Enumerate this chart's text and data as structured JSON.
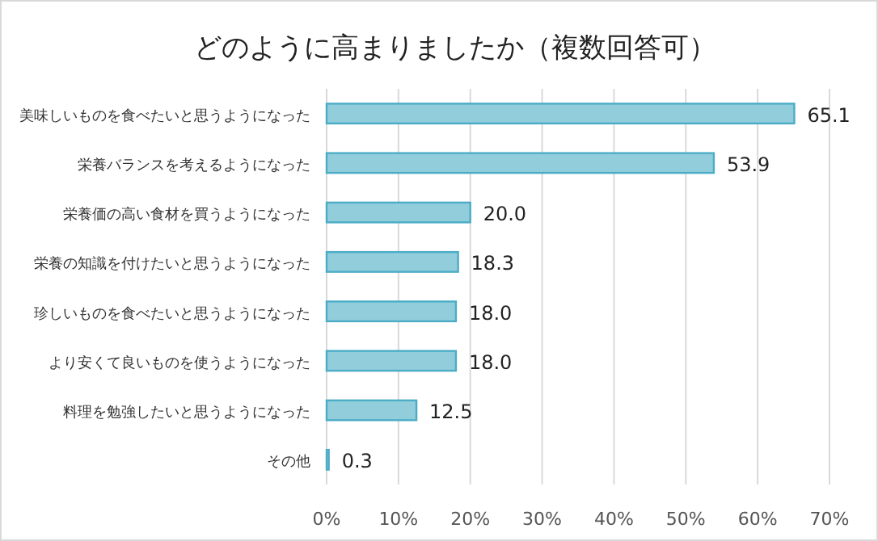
{
  "chart_data": {
    "type": "bar",
    "orientation": "horizontal",
    "title": "どのように高まりましたか（複数回答可）",
    "categories": [
      "美味しいものを食べたいと思うようになった",
      "栄養バランスを考えるようになった",
      "栄養価の高い食材を買うようになった",
      "栄養の知識を付けたいと思うようになった",
      "珍しいものを食べたいと思うようになった",
      "より安くて良いものを使うようになった",
      "料理を勉強したいと思うようになった",
      "その他"
    ],
    "values": [
      65.1,
      53.9,
      20.0,
      18.3,
      18.0,
      18.0,
      12.5,
      0.3
    ],
    "value_labels": [
      "65.1",
      "53.9",
      "20.0",
      "18.3",
      "18.0",
      "18.0",
      "12.5",
      "0.3"
    ],
    "color": "#92cddc",
    "xlim": [
      0,
      70
    ],
    "xticks": [
      {
        "value": 0,
        "label": "0%"
      },
      {
        "value": 10,
        "label": "10%"
      },
      {
        "value": 20,
        "label": "20%"
      },
      {
        "value": 30,
        "label": "30%"
      },
      {
        "value": 40,
        "label": "40%"
      },
      {
        "value": 50,
        "label": "50%"
      },
      {
        "value": 60,
        "label": "60%"
      },
      {
        "value": 70,
        "label": "70%"
      }
    ],
    "grid": "x"
  }
}
